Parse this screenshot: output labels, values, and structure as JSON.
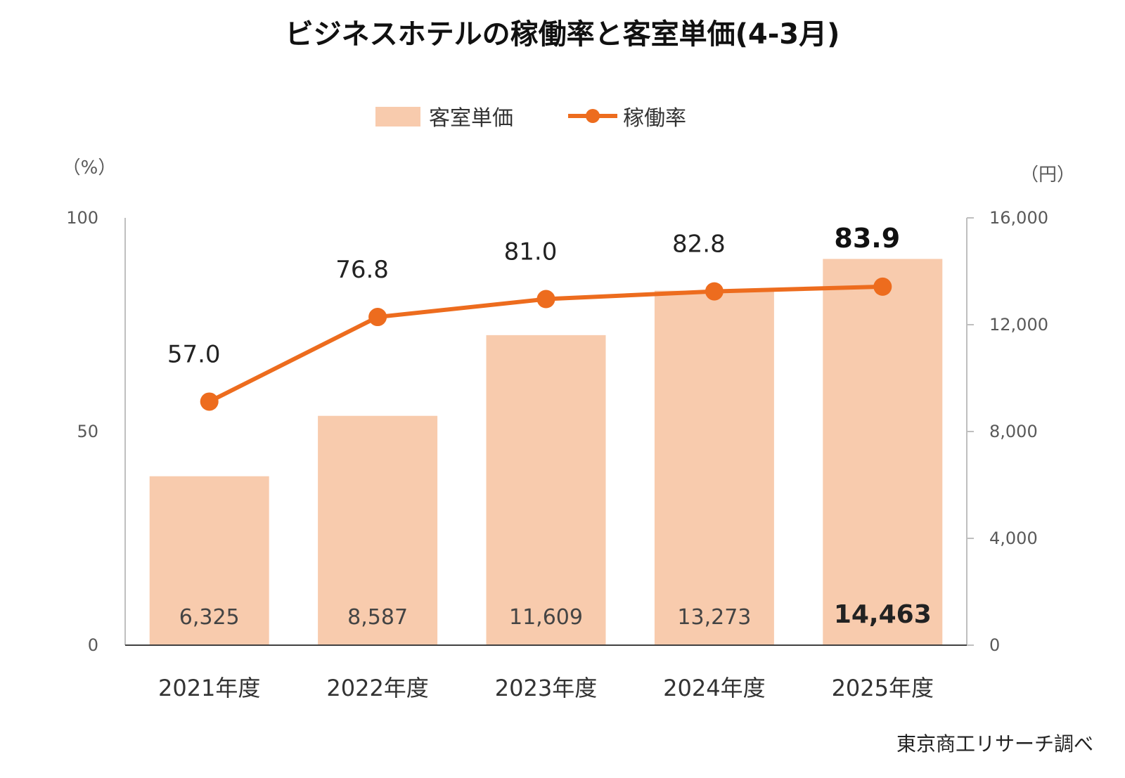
{
  "chart_data": {
    "type": "bar",
    "title": "ビジネスホテルの稼働率と客室単価(4-3月)",
    "categories": [
      "2021年度",
      "2022年度",
      "2023年度",
      "2024年度",
      "2025年度"
    ],
    "series": [
      {
        "name": "客室単価",
        "type": "bar",
        "axis": "right",
        "color": "#f8cbad",
        "values": [
          6325,
          8587,
          11609,
          13273,
          14463
        ],
        "labels": [
          "6,325",
          "8,587",
          "11,609",
          "13,273",
          "14,463"
        ]
      },
      {
        "name": "稼働率",
        "type": "line",
        "axis": "left",
        "color": "#ed6c1e",
        "values": [
          57.0,
          76.8,
          81.0,
          82.8,
          83.9
        ],
        "labels": [
          "57.0",
          "76.8",
          "81.0",
          "82.8",
          "83.9"
        ]
      }
    ],
    "highlight_index": 4,
    "y_left": {
      "unit": "（%）",
      "range": [
        0,
        100
      ],
      "ticks": [
        "0",
        "50",
        "100"
      ],
      "tick_values": [
        0,
        50,
        100
      ]
    },
    "y_right": {
      "unit": "（円）",
      "range": [
        0,
        16000
      ],
      "ticks": [
        "0",
        "4,000",
        "8,000",
        "12,000",
        "16,000"
      ],
      "tick_values": [
        0,
        4000,
        8000,
        12000,
        16000
      ]
    },
    "legend_position": "top-center",
    "grid": false,
    "source": "東京商工リサーチ調べ"
  }
}
